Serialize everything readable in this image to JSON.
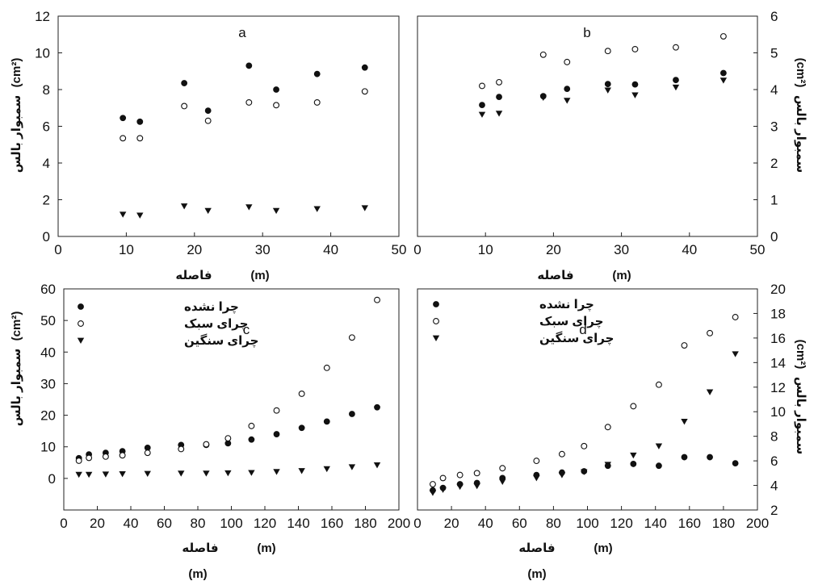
{
  "chart_data": [
    {
      "type": "scatter",
      "panel_label": "a",
      "xlabel": "فاصله",
      "xunit": "(m)",
      "ylabel": "سمبوار بالس",
      "yunit": "(cm²)",
      "xlim": [
        0,
        50
      ],
      "ylim": [
        0,
        12
      ],
      "xticks": [
        "0",
        "10",
        "20",
        "30",
        "40",
        "50"
      ],
      "yticks": [
        "0",
        "2",
        "4",
        "6",
        "8",
        "10",
        "12"
      ],
      "y_axis_side": "left",
      "grid": false,
      "series": [
        {
          "marker": "filled-circle",
          "points": [
            [
              9.5,
              6.45
            ],
            [
              12,
              6.25
            ],
            [
              18.5,
              8.35
            ],
            [
              22,
              6.85
            ],
            [
              28,
              9.3
            ],
            [
              32,
              8.0
            ],
            [
              38,
              8.85
            ],
            [
              45,
              9.2
            ]
          ]
        },
        {
          "marker": "open-circle",
          "points": [
            [
              9.5,
              5.35
            ],
            [
              12,
              5.35
            ],
            [
              18.5,
              7.1
            ],
            [
              22,
              6.3
            ],
            [
              28,
              7.3
            ],
            [
              32,
              7.15
            ],
            [
              38,
              7.3
            ],
            [
              45,
              7.9
            ]
          ]
        },
        {
          "marker": "filled-triangle-down",
          "points": [
            [
              9.5,
              1.2
            ],
            [
              12,
              1.15
            ],
            [
              18.5,
              1.65
            ],
            [
              22,
              1.4
            ],
            [
              28,
              1.6
            ],
            [
              32,
              1.4
            ],
            [
              38,
              1.5
            ],
            [
              45,
              1.55
            ]
          ]
        }
      ]
    },
    {
      "type": "scatter",
      "panel_label": "b",
      "xlabel": "فاصله",
      "xunit": "(m)",
      "ylabel": "سمبوار بالس",
      "yunit": "(cm²)",
      "xlim": [
        0,
        50
      ],
      "ylim": [
        0,
        6
      ],
      "xticks": [
        "0",
        "10",
        "20",
        "30",
        "40",
        "50"
      ],
      "yticks": [
        "0",
        "1",
        "2",
        "3",
        "4",
        "5",
        "6"
      ],
      "y_axis_side": "right",
      "grid": false,
      "series": [
        {
          "marker": "filled-circle",
          "points": [
            [
              9.5,
              3.58
            ],
            [
              12,
              3.8
            ],
            [
              18.5,
              3.82
            ],
            [
              22,
              4.02
            ],
            [
              28,
              4.15
            ],
            [
              32,
              4.14
            ],
            [
              38,
              4.26
            ],
            [
              45,
              4.45
            ]
          ]
        },
        {
          "marker": "open-circle",
          "points": [
            [
              9.5,
              4.1
            ],
            [
              12,
              4.2
            ],
            [
              18.5,
              4.95
            ],
            [
              22,
              4.75
            ],
            [
              28,
              5.05
            ],
            [
              32,
              5.1
            ],
            [
              38,
              5.15
            ],
            [
              45,
              5.45
            ]
          ]
        },
        {
          "marker": "filled-triangle-down",
          "points": [
            [
              9.5,
              3.32
            ],
            [
              12,
              3.35
            ],
            [
              18.5,
              3.78
            ],
            [
              22,
              3.7
            ],
            [
              28,
              3.98
            ],
            [
              32,
              3.85
            ],
            [
              38,
              4.06
            ],
            [
              45,
              4.25
            ]
          ]
        }
      ]
    },
    {
      "type": "scatter",
      "panel_label": "c",
      "xlabel": "فاصله",
      "xunit": "(m)",
      "ylabel": "سمبوار بالس",
      "yunit": "(cm²)",
      "xlim": [
        0,
        200
      ],
      "ylim": [
        -10,
        60
      ],
      "xticks": [
        "0",
        "20",
        "40",
        "60",
        "80",
        "100",
        "120",
        "140",
        "160",
        "180",
        "200"
      ],
      "yticks": [
        "0",
        "10",
        "20",
        "30",
        "40",
        "50",
        "60"
      ],
      "y_axis_side": "left",
      "grid": false,
      "legend_position": "top-left",
      "legend": [
        "چرا نشده",
        "چرای سبک",
        "چرای سنگین"
      ],
      "series": [
        {
          "name": "چرا نشده",
          "marker": "filled-circle",
          "points": [
            [
              9,
              6.4
            ],
            [
              15,
              7.6
            ],
            [
              25,
              8.1
            ],
            [
              35,
              8.6
            ],
            [
              50,
              9.7
            ],
            [
              70,
              10.6
            ],
            [
              85,
              10.6
            ],
            [
              98,
              11.1
            ],
            [
              112,
              12.3
            ],
            [
              127,
              14.0
            ],
            [
              142,
              16.0
            ],
            [
              157,
              18.0
            ],
            [
              172,
              20.4
            ],
            [
              187,
              22.5
            ]
          ]
        },
        {
          "name": "چرای سبک",
          "marker": "open-circle",
          "points": [
            [
              9,
              5.6
            ],
            [
              15,
              6.5
            ],
            [
              25,
              6.9
            ],
            [
              35,
              7.3
            ],
            [
              50,
              8.1
            ],
            [
              70,
              9.3
            ],
            [
              85,
              10.8
            ],
            [
              98,
              12.7
            ],
            [
              112,
              16.6
            ],
            [
              127,
              21.5
            ],
            [
              142,
              26.8
            ],
            [
              157,
              35.0
            ],
            [
              172,
              44.6
            ],
            [
              187,
              56.5
            ]
          ]
        },
        {
          "name": "چرای سنگین",
          "marker": "filled-triangle-down",
          "points": [
            [
              9,
              1.2
            ],
            [
              15,
              1.2
            ],
            [
              25,
              1.3
            ],
            [
              35,
              1.4
            ],
            [
              50,
              1.5
            ],
            [
              70,
              1.6
            ],
            [
              85,
              1.6
            ],
            [
              98,
              1.7
            ],
            [
              112,
              1.8
            ],
            [
              127,
              2.1
            ],
            [
              142,
              2.4
            ],
            [
              157,
              3.0
            ],
            [
              172,
              3.6
            ],
            [
              187,
              4.2
            ]
          ]
        }
      ]
    },
    {
      "type": "scatter",
      "panel_label": "d",
      "xlabel": "فاصله",
      "xunit": "(m)",
      "ylabel": "سمبوار بالس",
      "yunit": "(cm²)",
      "xlim": [
        0,
        200
      ],
      "ylim": [
        2,
        20
      ],
      "xticks": [
        "0",
        "20",
        "40",
        "60",
        "80",
        "100",
        "120",
        "140",
        "160",
        "180",
        "200"
      ],
      "yticks": [
        "2",
        "4",
        "6",
        "8",
        "10",
        "12",
        "14",
        "16",
        "18",
        "20"
      ],
      "y_axis_side": "right",
      "grid": false,
      "legend_position": "top-left",
      "legend": [
        "چرا نشده",
        "چرای سبک",
        "چرای سنگین"
      ],
      "series": [
        {
          "name": "چرا نشده",
          "marker": "filled-circle",
          "points": [
            [
              9,
              3.6
            ],
            [
              15,
              3.8
            ],
            [
              25,
              4.1
            ],
            [
              35,
              4.2
            ],
            [
              50,
              4.6
            ],
            [
              70,
              4.85
            ],
            [
              85,
              5.05
            ],
            [
              98,
              5.15
            ],
            [
              112,
              5.6
            ],
            [
              127,
              5.75
            ],
            [
              142,
              5.6
            ],
            [
              157,
              6.3
            ],
            [
              172,
              6.3
            ],
            [
              187,
              5.8
            ]
          ]
        },
        {
          "name": "چرای سبک",
          "marker": "open-circle",
          "points": [
            [
              9,
              4.1
            ],
            [
              15,
              4.6
            ],
            [
              25,
              4.85
            ],
            [
              35,
              5.0
            ],
            [
              50,
              5.4
            ],
            [
              70,
              6.0
            ],
            [
              85,
              6.55
            ],
            [
              98,
              7.2
            ],
            [
              112,
              8.75
            ],
            [
              127,
              10.45
            ],
            [
              142,
              12.2
            ],
            [
              157,
              15.4
            ],
            [
              172,
              16.4
            ],
            [
              187,
              17.7
            ]
          ]
        },
        {
          "name": "چرای سنگین",
          "marker": "filled-triangle-down",
          "points": [
            [
              9,
              3.4
            ],
            [
              15,
              3.65
            ],
            [
              25,
              3.9
            ],
            [
              35,
              3.95
            ],
            [
              50,
              4.3
            ],
            [
              70,
              4.6
            ],
            [
              85,
              4.85
            ],
            [
              98,
              5.1
            ],
            [
              112,
              5.7
            ],
            [
              127,
              6.45
            ],
            [
              142,
              7.2
            ],
            [
              157,
              9.2
            ],
            [
              172,
              11.6
            ],
            [
              187,
              14.7
            ]
          ]
        }
      ]
    }
  ],
  "stray_text": [
    "(m)",
    "(m)"
  ],
  "colors": {
    "marker": "#111111",
    "axis": "#222222",
    "background": "#ffffff"
  }
}
